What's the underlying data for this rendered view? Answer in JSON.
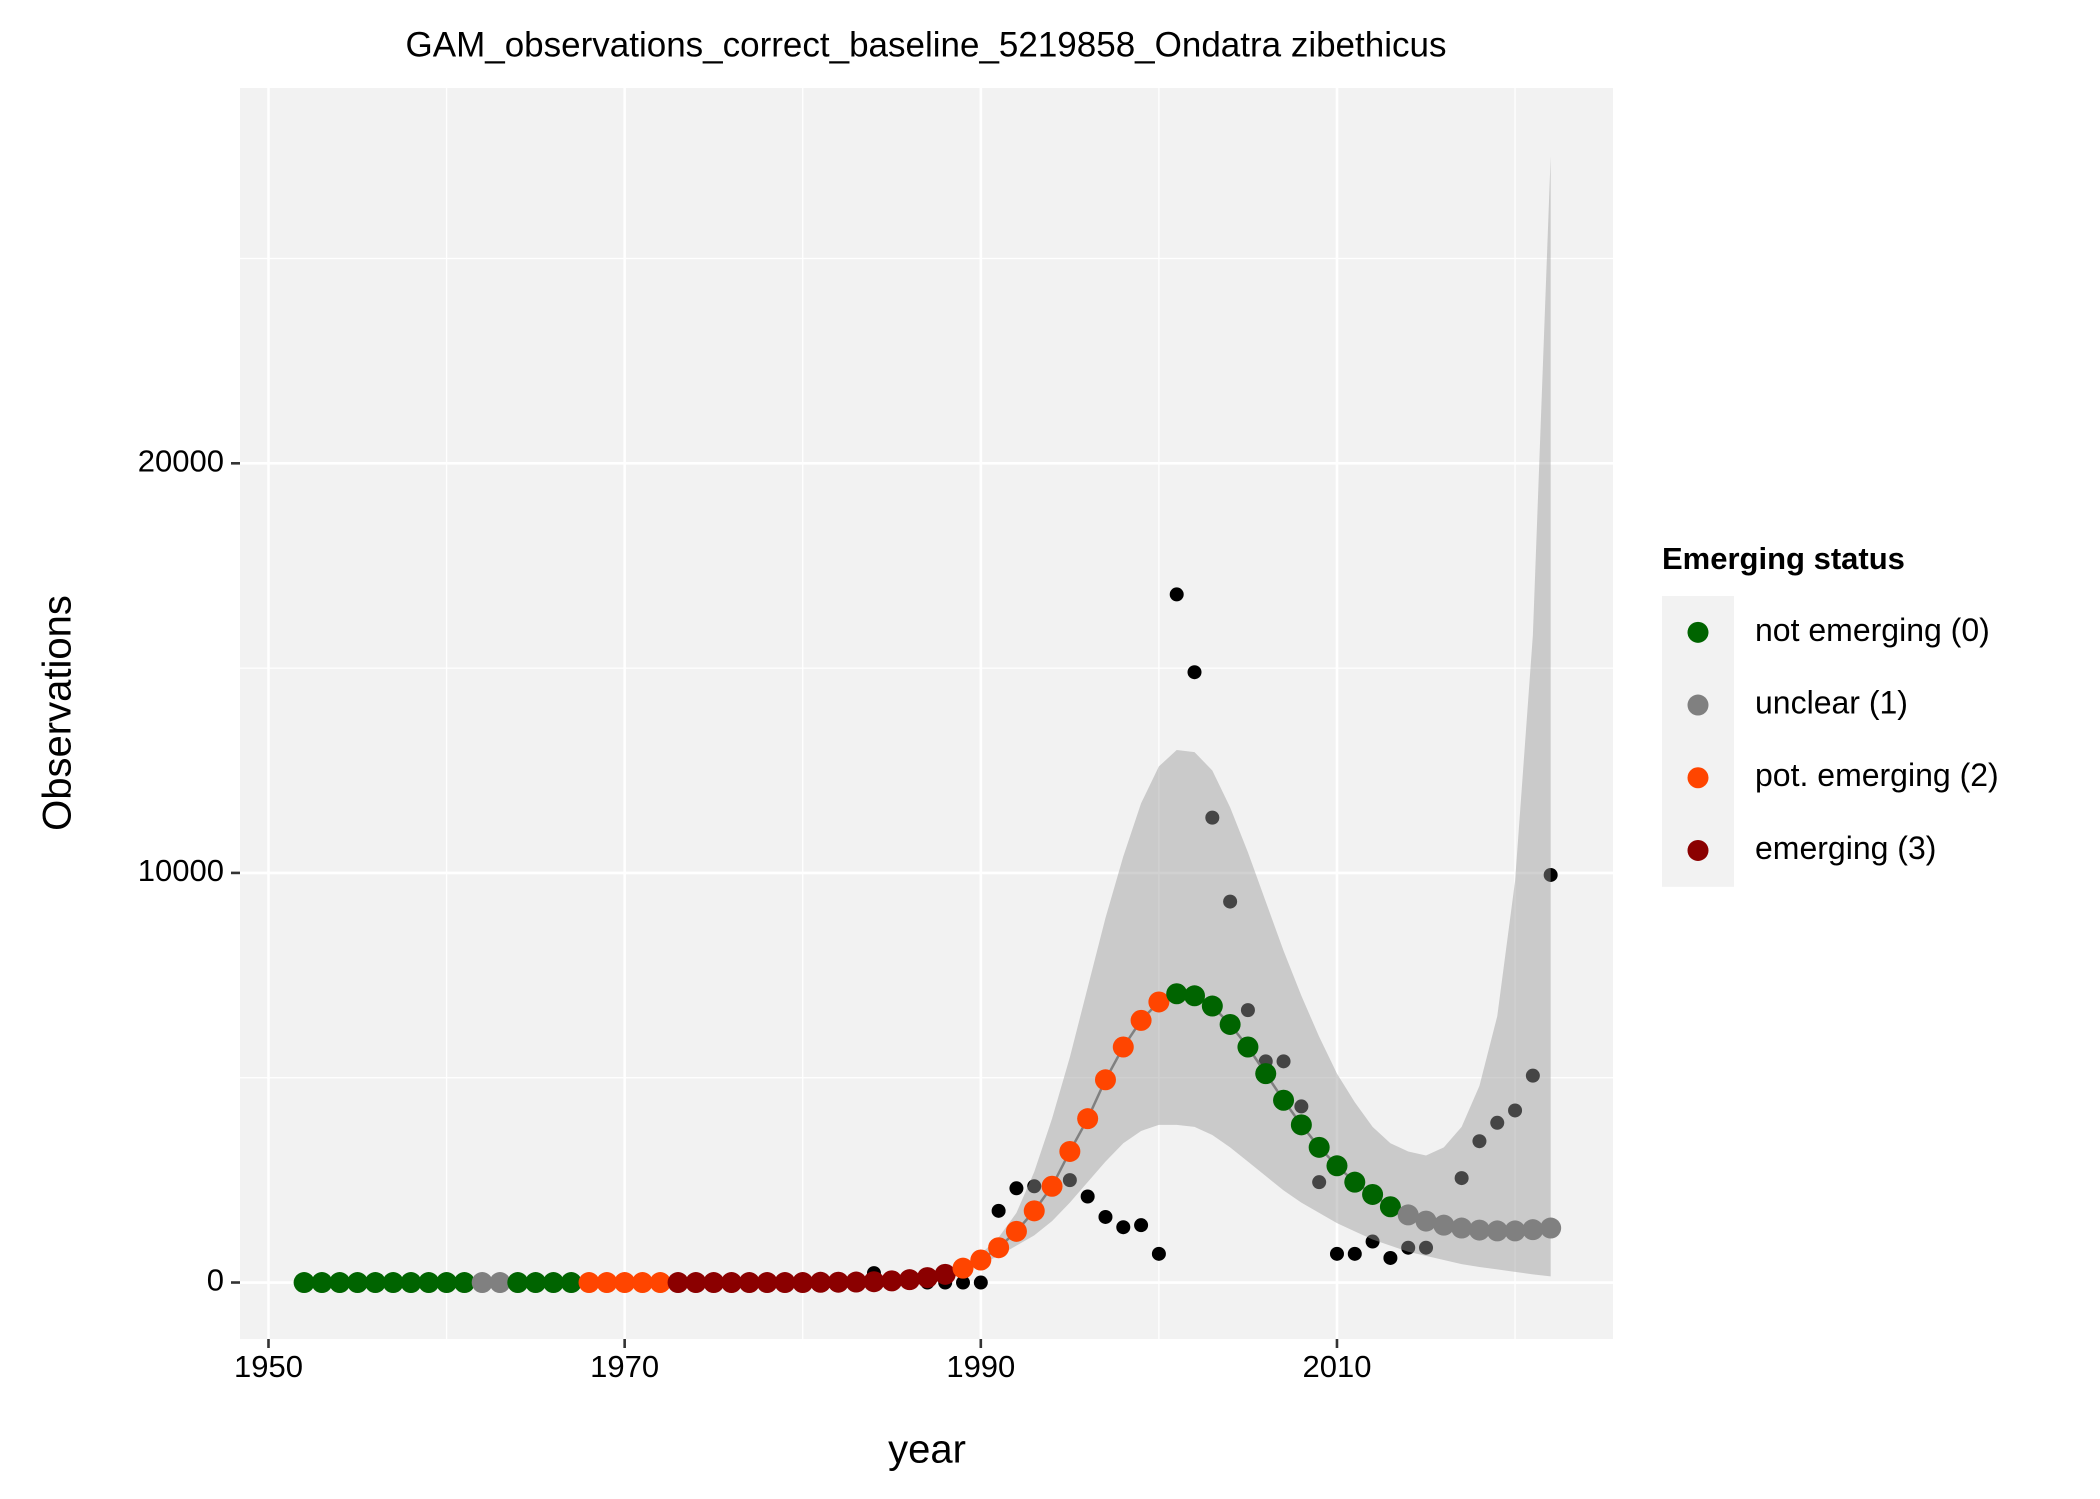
{
  "chart_data": {
    "type": "gam",
    "title": "GAM_observations_correct_baseline_5219858_Ondatra zibethicus",
    "x_label": "year",
    "y_label": "Observations",
    "x": [
      1952,
      1953,
      1954,
      1955,
      1956,
      1957,
      1958,
      1959,
      1960,
      1961,
      1962,
      1963,
      1964,
      1965,
      1966,
      1967,
      1968,
      1969,
      1970,
      1971,
      1972,
      1973,
      1974,
      1975,
      1976,
      1977,
      1978,
      1979,
      1980,
      1981,
      1982,
      1983,
      1984,
      1985,
      1986,
      1987,
      1988,
      1989,
      1990,
      1991,
      1992,
      1993,
      1994,
      1995,
      1996,
      1997,
      1998,
      1999,
      2000,
      2001,
      2002,
      2003,
      2004,
      2005,
      2006,
      2007,
      2008,
      2009,
      2010,
      2011,
      2012,
      2013,
      2014,
      2015,
      2016,
      2017,
      2018,
      2019,
      2020,
      2021,
      2022
    ],
    "fit": [
      0,
      0,
      0,
      0,
      0,
      0,
      0,
      0,
      0,
      0,
      0,
      0,
      0,
      0,
      0,
      0,
      0,
      0,
      0,
      0,
      0,
      0,
      0,
      0,
      0,
      0,
      0,
      0,
      0,
      5,
      8,
      12,
      20,
      40,
      70,
      120,
      200,
      350,
      550,
      850,
      1250,
      1750,
      2350,
      3200,
      4000,
      4950,
      5750,
      6400,
      6850,
      7050,
      7000,
      6750,
      6300,
      5750,
      5100,
      4450,
      3850,
      3300,
      2850,
      2450,
      2150,
      1850,
      1650,
      1500,
      1400,
      1330,
      1280,
      1260,
      1260,
      1290,
      1330
    ],
    "status": [
      0,
      0,
      0,
      0,
      0,
      0,
      0,
      0,
      0,
      0,
      1,
      1,
      0,
      0,
      0,
      0,
      2,
      2,
      2,
      2,
      2,
      3,
      3,
      3,
      3,
      3,
      3,
      3,
      3,
      3,
      3,
      3,
      3,
      3,
      3,
      3,
      3,
      2,
      2,
      2,
      2,
      2,
      2,
      2,
      2,
      2,
      2,
      2,
      2,
      0,
      0,
      0,
      0,
      0,
      0,
      0,
      0,
      0,
      0,
      0,
      0,
      0,
      1,
      1,
      1,
      1,
      1,
      1,
      1,
      1,
      1
    ],
    "lower": [
      0,
      0,
      0,
      0,
      0,
      0,
      0,
      0,
      0,
      0,
      0,
      0,
      0,
      0,
      0,
      0,
      0,
      0,
      0,
      0,
      0,
      0,
      0,
      0,
      0,
      0,
      0,
      0,
      0,
      3,
      5,
      8,
      15,
      30,
      55,
      95,
      160,
      290,
      450,
      650,
      900,
      1150,
      1500,
      1950,
      2450,
      2950,
      3400,
      3700,
      3850,
      3850,
      3800,
      3600,
      3300,
      2950,
      2600,
      2250,
      1950,
      1700,
      1450,
      1250,
      1050,
      900,
      750,
      650,
      550,
      450,
      380,
      320,
      260,
      200,
      150
    ],
    "upper": [
      0,
      0,
      0,
      0,
      0,
      0,
      0,
      0,
      0,
      0,
      0,
      0,
      0,
      0,
      0,
      0,
      0,
      0,
      0,
      0,
      0,
      0,
      0,
      0,
      0,
      0,
      0,
      0,
      0,
      8,
      12,
      18,
      28,
      55,
      90,
      150,
      250,
      430,
      700,
      1100,
      1700,
      2700,
      4000,
      5500,
      7200,
      8900,
      10400,
      11700,
      12600,
      13000,
      12950,
      12500,
      11600,
      10500,
      9300,
      8100,
      7000,
      6000,
      5100,
      4400,
      3800,
      3400,
      3200,
      3100,
      3300,
      3800,
      4800,
      6500,
      9800,
      15800,
      27500
    ],
    "observed": [
      0,
      0,
      0,
      0,
      0,
      0,
      0,
      0,
      0,
      0,
      0,
      0,
      0,
      0,
      0,
      0,
      0,
      0,
      0,
      0,
      0,
      0,
      0,
      0,
      0,
      0,
      0,
      0,
      0,
      0,
      0,
      0,
      230,
      50,
      40,
      0,
      0,
      0,
      0,
      1750,
      2300,
      2350,
      2300,
      2500,
      2100,
      1600,
      1350,
      1400,
      700,
      16800,
      14900,
      11350,
      9300,
      6650,
      5400,
      5400,
      4300,
      2450,
      700,
      700,
      1000,
      600,
      850,
      850,
      null,
      2550,
      3450,
      3900,
      4200,
      5050,
      9950
    ],
    "xlim": [
      1948.4,
      2025.5
    ],
    "ylim": [
      -1379,
      29163
    ],
    "xticks": [
      1950,
      1970,
      1990,
      2010
    ],
    "yticks": [
      0,
      10000,
      20000
    ],
    "xminor": [
      1960,
      1980,
      2000,
      2020
    ],
    "yminor": [
      5000,
      15000,
      25000
    ],
    "grid": true,
    "legend": {
      "title": "Emerging status",
      "position": "right",
      "items": [
        {
          "name": "not emerging (0)",
          "color": "#006400"
        },
        {
          "name": "unclear (1)",
          "color": "#808080"
        },
        {
          "name": "pot. emerging (2)",
          "color": "#FF4500"
        },
        {
          "name": "emerging (3)",
          "color": "#8B0000"
        }
      ]
    }
  }
}
